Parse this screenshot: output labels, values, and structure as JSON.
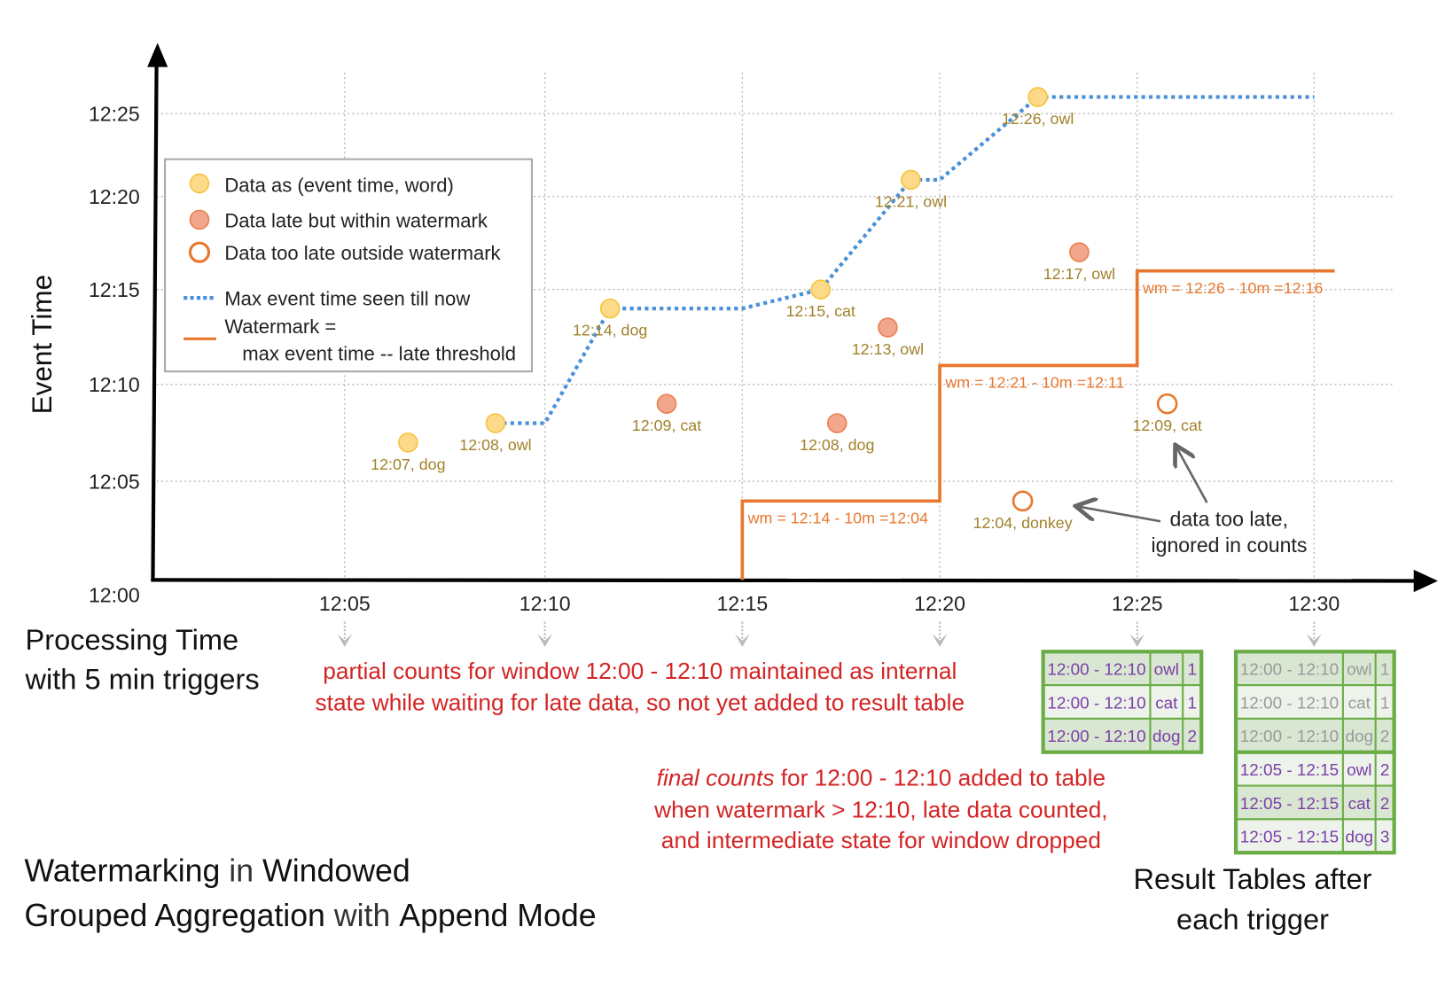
{
  "axes": {
    "y_label": "Event Time",
    "x_label_line1": "Processing Time",
    "x_label_line2": "with 5 min triggers",
    "y_ticks": [
      "12:00",
      "12:05",
      "12:10",
      "12:15",
      "12:20",
      "12:25"
    ],
    "x_ticks": [
      "12:05",
      "12:10",
      "12:15",
      "12:20",
      "12:25",
      "12:30"
    ]
  },
  "legend": {
    "items": [
      {
        "label": "Data as (event time, word)",
        "icon": "yellow-filled-circle"
      },
      {
        "label": "Data late but within watermark",
        "icon": "salmon-filled-circle"
      },
      {
        "label": "Data too late outside watermark",
        "icon": "orange-hollow-circle"
      },
      {
        "label": "Max event time seen till now",
        "icon": "blue-dotted-line"
      },
      {
        "label": "Watermark =",
        "icon": "orange-solid-line"
      }
    ],
    "watermark_line2": "max event time -- late threshold"
  },
  "colors": {
    "on_time": "#fdd98a",
    "on_time_stroke": "#f5c33b",
    "late": "#f2a68c",
    "late_stroke": "#e8804f",
    "too_late": "#e8782f",
    "max_line": "#4a90d9",
    "watermark": "#e8782f",
    "table_border": "#6aad46",
    "note": "#d42424",
    "cell_text": "#7a3fa8",
    "cell_text_old": "#999999"
  },
  "points": [
    {
      "label": "12:07, dog",
      "event": "12:07",
      "processed": "12:06:35",
      "kind": "on_time"
    },
    {
      "label": "12:08, owl",
      "event": "12:08",
      "processed": "12:08:46",
      "kind": "on_time"
    },
    {
      "label": "12:14, dog",
      "event": "12:14",
      "processed": "12:11:39",
      "kind": "on_time"
    },
    {
      "label": "12:09, cat",
      "event": "12:09",
      "processed": "12:13:05",
      "kind": "late"
    },
    {
      "label": "12:15, cat",
      "event": "12:15",
      "processed": "12:16:59",
      "kind": "on_time"
    },
    {
      "label": "12:08, dog",
      "event": "12:08",
      "processed": "12:17:24",
      "kind": "late"
    },
    {
      "label": "12:13, owl",
      "event": "12:13",
      "processed": "12:18:41",
      "kind": "late"
    },
    {
      "label": "12:21, owl",
      "event": "12:21",
      "processed": "12:19:16",
      "kind": "on_time"
    },
    {
      "label": "12:04, donkey",
      "event": "12:04",
      "processed": "12:22:06",
      "kind": "too_late"
    },
    {
      "label": "12:26, owl",
      "event": "12:26",
      "processed": "12:22:29",
      "kind": "on_time"
    },
    {
      "label": "12:17, owl",
      "event": "12:17",
      "processed": "12:23:32",
      "kind": "late"
    },
    {
      "label": "12:09, cat",
      "event": "12:09",
      "processed": "12:25:51",
      "kind": "too_late"
    }
  ],
  "max_event_line": [
    [
      "12:08:46",
      "12:08"
    ],
    [
      "12:10:00",
      "12:08"
    ],
    [
      "12:11:39",
      "12:14"
    ],
    [
      "12:15:00",
      "12:14"
    ],
    [
      "12:16:59",
      "12:15"
    ],
    [
      "12:19:16",
      "12:21"
    ],
    [
      "12:20:00",
      "12:21"
    ],
    [
      "12:22:29",
      "12:26"
    ],
    [
      "12:30:00",
      "12:26"
    ]
  ],
  "watermark_steps": [
    {
      "from": "12:15:00",
      "to": "12:20:00",
      "value": "12:04",
      "label": "wm = 12:14 - 10m =12:04"
    },
    {
      "from": "12:20:00",
      "to": "12:25:00",
      "value": "12:11",
      "label": "wm = 12:21 - 10m =12:11"
    },
    {
      "from": "12:25:00",
      "to": "12:30:35",
      "value": "12:16",
      "label": "wm = 12:26 - 10m =12:16"
    }
  ],
  "notes": {
    "too_late_line1": "data too late,",
    "too_late_line2": "ignored in counts",
    "partial_line1": "partial counts for window 12:00 - 12:10 maintained as internal",
    "partial_line2": "state while waiting for late data, so not yet added  to result table",
    "final_em": "final counts",
    "final_line1_rest": " for 12:00 - 12:10 added to table",
    "final_line2": "when watermark > 12:10, late data counted,",
    "final_line3": "and intermediate state for window dropped"
  },
  "title": {
    "w1": "Watermarking",
    "w2": " in ",
    "w3": "Windowed",
    "w4": "Grouped Aggregation",
    "w5": " with ",
    "w6": "Append Mode"
  },
  "result_caption": {
    "line1": "Result Tables after",
    "line2": "each trigger"
  },
  "tables": [
    {
      "trigger": "12:25",
      "rows": [
        {
          "window": "12:00 - 12:10",
          "word": "owl",
          "count": "1",
          "old": false
        },
        {
          "window": "12:00 - 12:10",
          "word": "cat",
          "count": "1",
          "old": false
        },
        {
          "window": "12:00 - 12:10",
          "word": "dog",
          "count": "2",
          "old": false
        }
      ]
    },
    {
      "trigger": "12:30",
      "rows": [
        {
          "window": "12:00 - 12:10",
          "word": "owl",
          "count": "1",
          "old": true
        },
        {
          "window": "12:00 - 12:10",
          "word": "cat",
          "count": "1",
          "old": true
        },
        {
          "window": "12:00 - 12:10",
          "word": "dog",
          "count": "2",
          "old": true
        },
        {
          "window": "12:05 - 12:15",
          "word": "owl",
          "count": "2",
          "old": false
        },
        {
          "window": "12:05 - 12:15",
          "word": "cat",
          "count": "2",
          "old": false
        },
        {
          "window": "12:05 - 12:15",
          "word": "dog",
          "count": "3",
          "old": false
        }
      ]
    }
  ]
}
